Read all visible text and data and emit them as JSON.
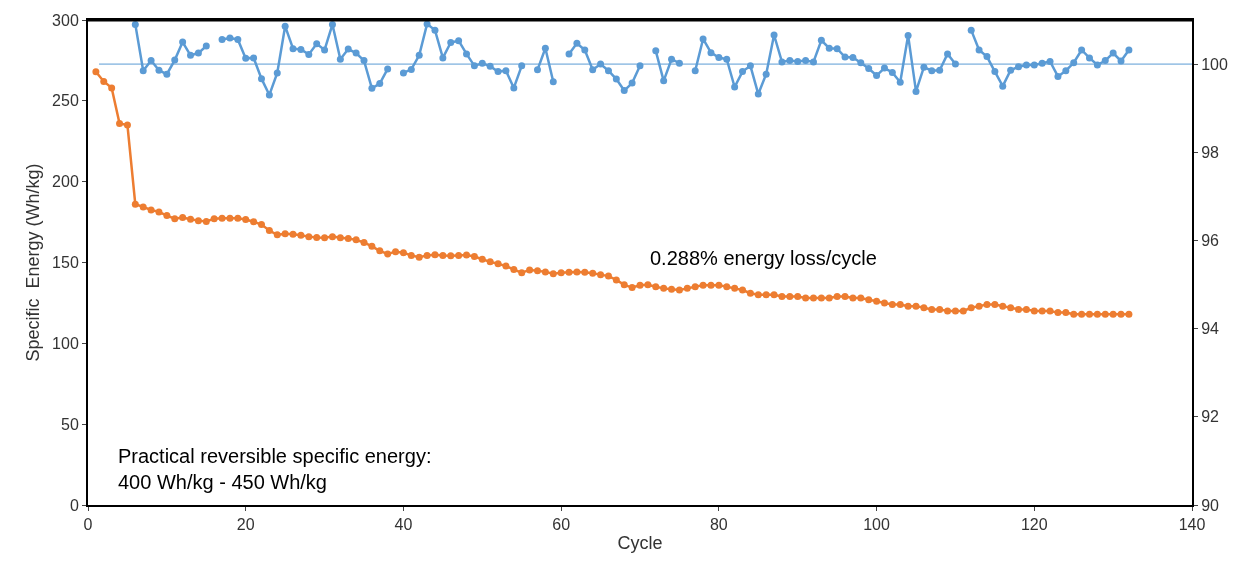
{
  "chart_data": {
    "type": "line",
    "xlabel": "Cycle",
    "ylabel": "Specific  Energy (Wh/kg)",
    "x": [
      1,
      2,
      3,
      4,
      5,
      6,
      7,
      8,
      9,
      10,
      11,
      12,
      13,
      14,
      15,
      16,
      17,
      18,
      19,
      20,
      21,
      22,
      23,
      24,
      25,
      26,
      27,
      28,
      29,
      30,
      31,
      32,
      33,
      34,
      35,
      36,
      37,
      38,
      39,
      40,
      41,
      42,
      43,
      44,
      45,
      46,
      47,
      48,
      49,
      50,
      51,
      52,
      53,
      54,
      55,
      56,
      57,
      58,
      59,
      60,
      61,
      62,
      63,
      64,
      65,
      66,
      67,
      68,
      69,
      70,
      71,
      72,
      73,
      74,
      75,
      76,
      77,
      78,
      79,
      80,
      81,
      82,
      83,
      84,
      85,
      86,
      87,
      88,
      89,
      90,
      91,
      92,
      93,
      94,
      95,
      96,
      97,
      98,
      99,
      100,
      101,
      102,
      103,
      104,
      105,
      106,
      107,
      108,
      109,
      110,
      111,
      112,
      113,
      114,
      115,
      116,
      117,
      118,
      119,
      120,
      121,
      122,
      123,
      124,
      125,
      126,
      127,
      128,
      129,
      130,
      131,
      132
    ],
    "series": [
      {
        "color": "#ed7d31",
        "values": [
          268,
          262,
          258,
          236,
          235,
          186,
          184.4,
          182.5,
          181.3,
          179,
          177.1,
          177.8,
          176.8,
          175.9,
          175.4,
          177.1,
          177.3,
          177.3,
          177.3,
          176.6,
          175.2,
          173.5,
          169.8,
          167.1,
          167.8,
          167.4,
          166.9,
          166,
          165.5,
          165.3,
          166,
          165.3,
          164.8,
          164,
          162.4,
          160,
          157.2,
          155.3,
          156.7,
          156,
          154.4,
          153.2,
          154.4,
          154.8,
          154.4,
          154.2,
          154.4,
          154.6,
          153.7,
          152,
          150.4,
          149.2,
          147.8,
          145.6,
          143.7,
          145.4,
          144.9,
          144.2,
          143,
          143.7,
          143.9,
          144.2,
          143.9,
          143.3,
          142.5,
          141.6,
          139.2,
          136.2,
          134.5,
          135.9,
          136.2,
          135,
          134,
          133.5,
          133,
          134,
          135,
          136,
          136,
          136,
          135,
          134,
          133,
          131,
          130,
          130,
          130,
          129,
          129,
          129,
          128,
          128,
          128,
          128,
          129,
          129,
          128,
          128,
          127,
          126,
          125,
          124,
          124,
          123,
          123,
          122,
          121,
          121,
          120,
          120,
          120,
          122,
          123,
          124,
          124,
          123,
          122,
          121,
          121,
          120,
          120,
          120,
          119,
          119,
          118,
          118,
          118,
          118,
          118,
          118,
          118,
          118
        ]
      },
      {
        "color": "#5b9bd5",
        "axis": "y2",
        "values": [
          null,
          null,
          null,
          null,
          null,
          100.9,
          99.85,
          100.08,
          99.86,
          99.77,
          100.09,
          100.5,
          100.2,
          100.25,
          100.41,
          null,
          100.56,
          100.59,
          100.56,
          100.13,
          100.14,
          99.67,
          99.3,
          99.8,
          100.86,
          100.35,
          100.33,
          100.22,
          100.46,
          100.32,
          100.9,
          100.11,
          100.34,
          100.25,
          100.08,
          99.45,
          99.56,
          99.89,
          null,
          99.8,
          99.88,
          100.2,
          100.91,
          100.77,
          100.14,
          100.49,
          100.53,
          100.23,
          99.96,
          100.02,
          99.95,
          99.83,
          99.85,
          99.46,
          99.96,
          null,
          99.87,
          100.36,
          99.6,
          null,
          100.23,
          100.47,
          100.32,
          99.87,
          100,
          99.85,
          99.66,
          99.4,
          99.57,
          99.96,
          null,
          100.3,
          99.62,
          100.11,
          100.02,
          null,
          99.85,
          100.57,
          100.26,
          100.15,
          100.11,
          99.48,
          99.83,
          99.96,
          99.32,
          99.77,
          100.66,
          100.05,
          100.08,
          100.06,
          100.08,
          100.05,
          100.54,
          100.36,
          100.35,
          100.16,
          100.15,
          100.03,
          99.9,
          99.74,
          99.91,
          99.81,
          99.59,
          100.65,
          99.38,
          99.93,
          99.85,
          99.86,
          100.23,
          100,
          null,
          100.77,
          100.32,
          100.17,
          99.83,
          99.5,
          99.86,
          99.94,
          99.98,
          99.98,
          100.02,
          100.06,
          99.72,
          99.85,
          100.03,
          100.32,
          100.14,
          99.98,
          100.08,
          100.25,
          100.07,
          100.32
        ]
      }
    ],
    "xlim": [
      0,
      140
    ],
    "xticks": [
      0,
      20,
      40,
      60,
      80,
      100,
      120,
      140
    ],
    "ylim": [
      0,
      300
    ],
    "yticks": [
      0,
      50,
      100,
      150,
      200,
      250,
      300
    ],
    "y2lim": [
      90,
      101
    ],
    "y2ticks": [
      90,
      92,
      94,
      96,
      98,
      100
    ],
    "ref_lines": [
      {
        "axis": "y2",
        "value": 100,
        "color": "#5b9bd5"
      }
    ],
    "annotations": [
      "0.288% energy loss/cycle",
      "Practical reversible specific energy:\n400 Wh/kg - 450 Wh/kg"
    ],
    "marker": "circle",
    "line_style": "solid",
    "legend": false
  }
}
